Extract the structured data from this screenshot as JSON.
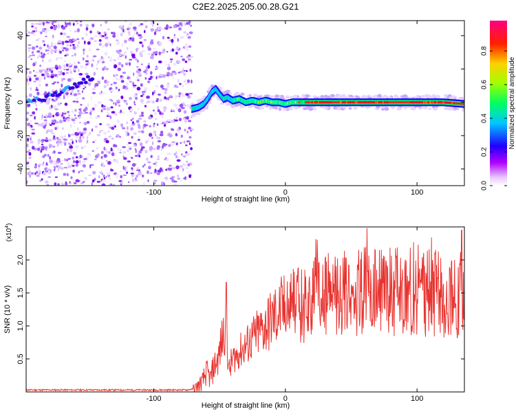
{
  "title": "C2E2.2025.205.00.28.G21",
  "colors": {
    "snr_line": "#e8332f",
    "noise_purple": "#7b1fe8",
    "background": "#ffffff"
  },
  "chart_data": [
    {
      "type": "heatmap",
      "xlabel": "Height of straight line (km)",
      "ylabel": "Frequency (Hz)",
      "xlim": [
        -197,
        136
      ],
      "ylim": [
        -50,
        49
      ],
      "xticks": [
        -100,
        0,
        100
      ],
      "yticks": [
        -40,
        -20,
        0,
        20,
        40
      ],
      "noise_region_x": [
        -197,
        -71
      ],
      "signal_trace": {
        "x": [
          -71,
          -66,
          -62,
          -59,
          -56,
          -53,
          -50,
          -47,
          -44,
          -40,
          -35,
          -30,
          -25,
          -20,
          -15,
          -10,
          -5,
          0,
          5,
          10,
          20,
          30,
          40,
          50,
          60,
          70,
          80,
          90,
          100,
          110,
          120,
          136
        ],
        "y": [
          -4,
          -3,
          -1,
          2,
          6,
          8,
          5,
          2,
          3,
          1,
          2,
          0,
          1,
          0,
          1,
          0,
          0,
          -1,
          0,
          0,
          0,
          0,
          0,
          0,
          0,
          0,
          0,
          0,
          0,
          0,
          0,
          -1
        ]
      },
      "noise_trace": {
        "x": [
          -197,
          -185,
          -175,
          -165,
          -155,
          -145
        ],
        "y": [
          0,
          2,
          5,
          8,
          12,
          16
        ]
      },
      "colorbar": {
        "label": "Normalized spectral amplitude",
        "range": [
          0,
          0.98
        ],
        "ticks": [
          0.0,
          0.2,
          0.4,
          0.6,
          0.8
        ],
        "tick_labels": [
          "0.0",
          "0.2",
          "0.4",
          "0.6",
          "0.8"
        ],
        "colors": [
          "#ffffff",
          "#ff00ff",
          "#0000ff",
          "#00ffff",
          "#00ff00",
          "#ffff00",
          "#ff0000",
          "#ff0080"
        ]
      }
    },
    {
      "type": "line",
      "xlabel": "Height of straight line (km)",
      "ylabel": "SNR (10 * v/v)",
      "multiplier": "(x10",
      "multiplier_exp": "4",
      "multiplier_close": ")",
      "xlim": [
        -197,
        136
      ],
      "ylim": [
        0,
        2.5
      ],
      "xticks": [
        -100,
        0,
        100
      ],
      "yticks": [
        0.5,
        1.0,
        1.5,
        2.0
      ],
      "ytick_labels": [
        "0.5",
        "1.0",
        "1.5",
        "2.0"
      ],
      "series": [
        {
          "x": [
            -197,
            -150,
            -100,
            -75,
            -68,
            -63,
            -60,
            -57,
            -54,
            -51,
            -48,
            -45,
            -43,
            -40,
            -35,
            -30,
            -25,
            -20,
            -15,
            -10,
            -5,
            0,
            5,
            10,
            15,
            20,
            30,
            40,
            50,
            60,
            70,
            80,
            90,
            100,
            110,
            120,
            130,
            136
          ],
          "y": [
            0.03,
            0.03,
            0.03,
            0.03,
            0.05,
            0.15,
            0.3,
            0.2,
            0.4,
            0.5,
            0.8,
            1.1,
            0.3,
            0.5,
            0.6,
            0.7,
            0.8,
            0.9,
            1.0,
            1.1,
            1.2,
            1.25,
            1.3,
            1.3,
            1.35,
            1.4,
            1.45,
            1.5,
            1.5,
            1.55,
            1.5,
            1.55,
            1.5,
            1.55,
            1.5,
            1.5,
            1.45,
            1.5
          ]
        }
      ]
    }
  ],
  "axes_text": {
    "x0": {
      "ticks": [
        "-100",
        "0",
        "100"
      ]
    },
    "y0": {
      "ticks": [
        "-40",
        "-20",
        "0",
        "20",
        "40"
      ]
    }
  }
}
